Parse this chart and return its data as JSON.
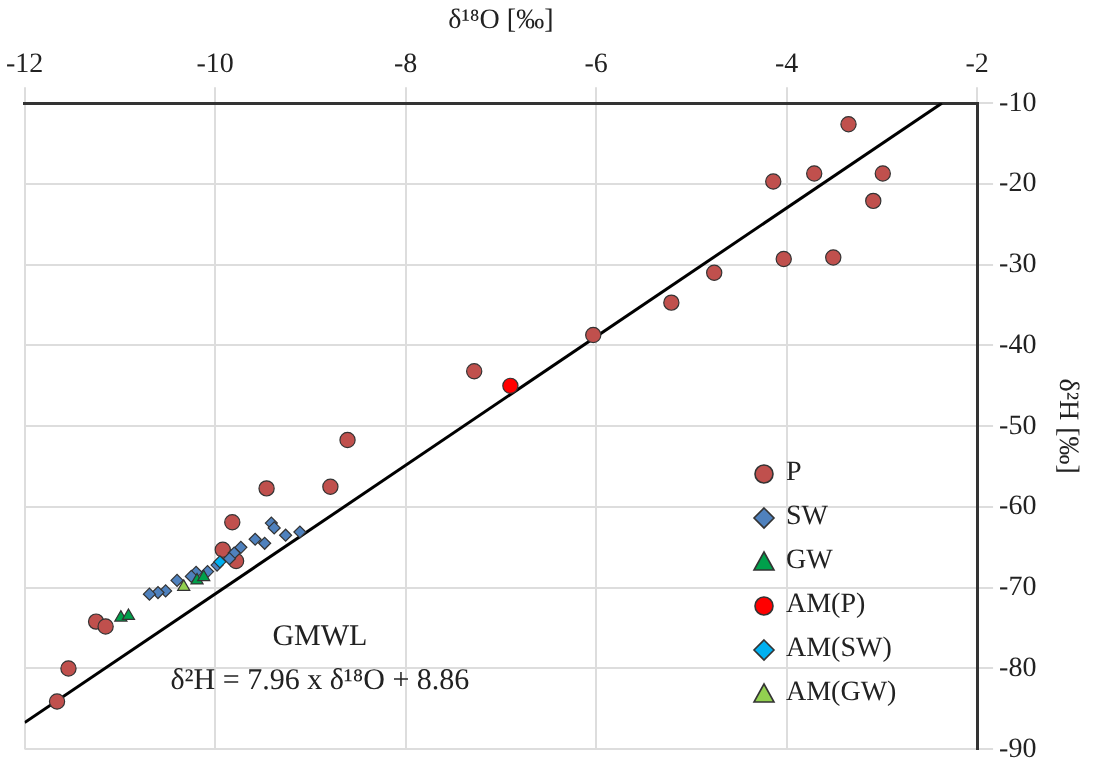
{
  "chart_data": {
    "type": "scatter",
    "xlabel": "δ¹⁸O [‰]",
    "ylabel": "δ²H [‰]",
    "xlim": [
      -12,
      -2
    ],
    "xticks": [
      -12,
      -10,
      -8,
      -6,
      -4,
      -2
    ],
    "ylim": [
      -90,
      -10
    ],
    "yticks": [
      -90,
      -80,
      -70,
      -60,
      -50,
      -40,
      -30,
      -20,
      -10
    ],
    "grid": true,
    "legend": "bottom right",
    "annotations": [
      "GMWL",
      "δ²H = 7.96 x δ¹⁸O + 8.86"
    ],
    "series": [
      {
        "name": "P",
        "color": "#c0504d",
        "marker": "circle",
        "x": [
          -3.35,
          -4.14,
          -3.71,
          -2.99,
          -3.09,
          -4.03,
          -3.51,
          -4.76,
          -5.21,
          -6.03,
          -7.28,
          -8.61,
          -9.46,
          -8.79,
          -9.82,
          -9.92,
          -9.78,
          -11.25,
          -11.15,
          -11.54,
          -11.66
        ],
        "values": [
          -12.6,
          -19.7,
          -18.7,
          -18.7,
          -22.1,
          -29.3,
          -29.1,
          -31.0,
          -34.7,
          -38.7,
          -43.2,
          -51.7,
          -57.7,
          -57.5,
          -61.9,
          -65.3,
          -66.7,
          -74.2,
          -74.8,
          -80.0,
          -84.1
        ]
      },
      {
        "name": "SW",
        "color": "#4f81bd",
        "marker": "diamond",
        "x": [
          -9.41,
          -9.38,
          -9.26,
          -9.11,
          -9.58,
          -9.48,
          -9.73,
          -9.8,
          -9.85,
          -9.98,
          -10.08,
          -10.2,
          -10.25,
          -10.4,
          -10.52,
          -10.6,
          -10.69
        ],
        "values": [
          -62.0,
          -62.6,
          -63.5,
          -63.1,
          -64.0,
          -64.5,
          -65.0,
          -65.7,
          -66.4,
          -67.2,
          -68.0,
          -68.1,
          -68.6,
          -69.1,
          -70.4,
          -70.6,
          -70.8
        ]
      },
      {
        "name": "GW",
        "color": "#00a04b",
        "marker": "triangle",
        "x": [
          -10.19,
          -10.12,
          -10.99,
          -10.91
        ],
        "values": [
          -69.1,
          -68.7,
          -73.7,
          -73.5
        ]
      },
      {
        "name": "AM(P)",
        "color": "#ff0000",
        "marker": "circle",
        "x": [
          -6.9
        ],
        "values": [
          -45.0
        ]
      },
      {
        "name": "AM(SW)",
        "color": "#00b0f0",
        "marker": "diamond",
        "x": [
          -9.95
        ],
        "values": [
          -66.8
        ]
      },
      {
        "name": "AM(GW)",
        "color": "#92d050",
        "marker": "triangle",
        "x": [
          -10.33
        ],
        "values": [
          -69.9
        ]
      },
      {
        "type": "line",
        "color": "#000000",
        "marker": "none",
        "x": [
          -12,
          -2.37
        ],
        "values": [
          -86.7,
          -10
        ]
      }
    ]
  }
}
